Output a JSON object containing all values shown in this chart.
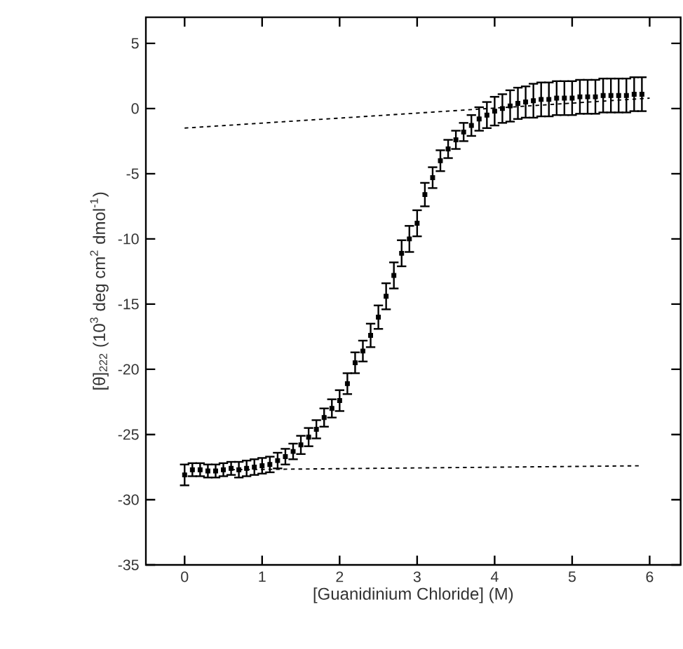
{
  "chart_data": {
    "type": "scatter",
    "xlabel": "[Guanidinium Chloride] (M)",
    "ylabel": "[θ]$_{222}$ (10$^{3}$ deg cm$^{2}$ dmol$^{-1}$)",
    "xlim": [
      -0.5,
      6.4
    ],
    "ylim": [
      -35,
      7
    ],
    "xticks": [
      0,
      1,
      2,
      3,
      4,
      5,
      6
    ],
    "yticks": [
      -35,
      -30,
      -25,
      -20,
      -15,
      -10,
      -5,
      0,
      5
    ],
    "series": [
      {
        "marker": "square",
        "color": "#000000",
        "x": [
          0,
          0.1,
          0.2,
          0.3,
          0.4,
          0.5,
          0.6,
          0.7,
          0.8,
          0.9,
          1.0,
          1.1,
          1.2,
          1.3,
          1.4,
          1.5,
          1.6,
          1.7,
          1.8,
          1.9,
          2.0,
          2.1,
          2.2,
          2.3,
          2.4,
          2.5,
          2.6,
          2.7,
          2.8,
          2.9,
          3.0,
          3.1,
          3.2,
          3.3,
          3.4,
          3.5,
          3.6,
          3.7,
          3.8,
          3.9,
          4.0,
          4.1,
          4.2,
          4.3,
          4.4,
          4.5,
          4.6,
          4.7,
          4.8,
          4.9,
          5.0,
          5.1,
          5.2,
          5.3,
          5.4,
          5.5,
          5.6,
          5.7,
          5.8,
          5.9
        ],
        "values": [
          -28.1,
          -27.7,
          -27.7,
          -27.8,
          -27.8,
          -27.7,
          -27.6,
          -27.7,
          -27.6,
          -27.5,
          -27.4,
          -27.3,
          -27.0,
          -26.7,
          -26.3,
          -25.8,
          -25.2,
          -24.6,
          -23.7,
          -23.0,
          -22.4,
          -21.1,
          -19.5,
          -18.6,
          -17.4,
          -16.0,
          -14.4,
          -12.8,
          -11.1,
          -10.0,
          -8.8,
          -6.6,
          -5.3,
          -4.0,
          -3.1,
          -2.4,
          -1.8,
          -1.3,
          -0.8,
          -0.5,
          -0.2,
          0.0,
          0.2,
          0.4,
          0.5,
          0.6,
          0.7,
          0.7,
          0.8,
          0.8,
          0.8,
          0.9,
          0.9,
          0.9,
          1.0,
          1.0,
          1.0,
          1.0,
          1.1,
          1.1
        ],
        "errors": [
          0.8,
          0.5,
          0.5,
          0.5,
          0.5,
          0.5,
          0.5,
          0.6,
          0.6,
          0.6,
          0.6,
          0.6,
          0.6,
          0.6,
          0.6,
          0.7,
          0.7,
          0.7,
          0.7,
          0.7,
          0.8,
          0.8,
          0.8,
          0.8,
          0.9,
          0.9,
          1.0,
          1.0,
          1.0,
          1.0,
          1.0,
          0.9,
          0.8,
          0.8,
          0.7,
          0.7,
          0.7,
          0.8,
          0.9,
          1.0,
          1.1,
          1.1,
          1.2,
          1.2,
          1.2,
          1.3,
          1.3,
          1.3,
          1.3,
          1.3,
          1.3,
          1.3,
          1.3,
          1.3,
          1.3,
          1.3,
          1.3,
          1.3,
          1.3,
          1.3
        ]
      },
      {
        "type": "line",
        "line_style": "dotted",
        "color": "#000000",
        "x": [
          0,
          6
        ],
        "values": [
          -1.5,
          0.8
        ]
      },
      {
        "type": "line",
        "line_style": "dotted",
        "color": "#000000",
        "x": [
          0.6,
          5.9
        ],
        "values": [
          -27.7,
          -27.4
        ]
      }
    ]
  }
}
